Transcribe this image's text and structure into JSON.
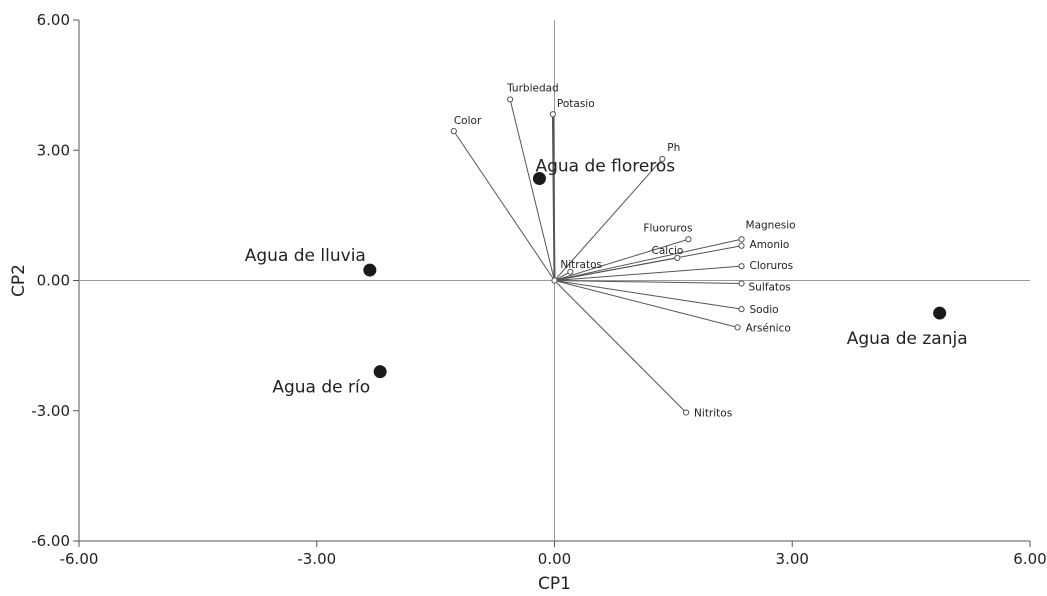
{
  "chart_data": {
    "type": "scatter",
    "subtype": "biplot",
    "title": "",
    "xlabel": "CP1",
    "ylabel": "CP2",
    "xlim": [
      -6,
      6
    ],
    "ylim": [
      -6,
      6
    ],
    "xticks": [
      "-6.00",
      "-3.00",
      "0.00",
      "3.00",
      "6.00"
    ],
    "yticks": [
      "6.00",
      "3.00",
      "0.00",
      "-3.00",
      "-6.00"
    ],
    "xtick_values": [
      -6,
      -3,
      0,
      3,
      6
    ],
    "ytick_values": [
      6,
      3,
      0,
      -3,
      -6
    ],
    "grid": false,
    "zero_lines": true,
    "colors": {
      "vector": "#555555",
      "point": "#1a1a1a",
      "axis": "#555555",
      "zero": "#9a9a9a"
    },
    "variables": [
      {
        "name": "Turbiedad",
        "x": -0.56,
        "y": 4.17
      },
      {
        "name": "Potasio",
        "x": -0.02,
        "y": 3.83
      },
      {
        "name": "Color",
        "x": -1.27,
        "y": 3.44
      },
      {
        "name": "Ph",
        "x": 1.36,
        "y": 2.8
      },
      {
        "name": "Magnesio",
        "x": 2.36,
        "y": 0.95
      },
      {
        "name": "Fluoruros",
        "x": 1.69,
        "y": 0.95
      },
      {
        "name": "Amonio",
        "x": 2.36,
        "y": 0.8
      },
      {
        "name": "Calcio",
        "x": 1.55,
        "y": 0.52
      },
      {
        "name": "Cloruros",
        "x": 2.36,
        "y": 0.33
      },
      {
        "name": "Nitratos",
        "x": 0.2,
        "y": 0.2
      },
      {
        "name": "Sulfatos",
        "x": 2.36,
        "y": -0.07
      },
      {
        "name": "Sodio",
        "x": 2.36,
        "y": -0.66
      },
      {
        "name": "Arsénico",
        "x": 2.31,
        "y": -1.08
      },
      {
        "name": "Nitritos",
        "x": 1.66,
        "y": -3.04
      }
    ],
    "observations": [
      {
        "name": "Agua de floreros",
        "x": -0.19,
        "y": 2.35
      },
      {
        "name": "Agua de lluvia",
        "x": -2.33,
        "y": 0.24
      },
      {
        "name": "Agua de río",
        "x": -2.2,
        "y": -2.1
      },
      {
        "name": "Agua de zanja",
        "x": 4.86,
        "y": -0.75
      }
    ]
  }
}
